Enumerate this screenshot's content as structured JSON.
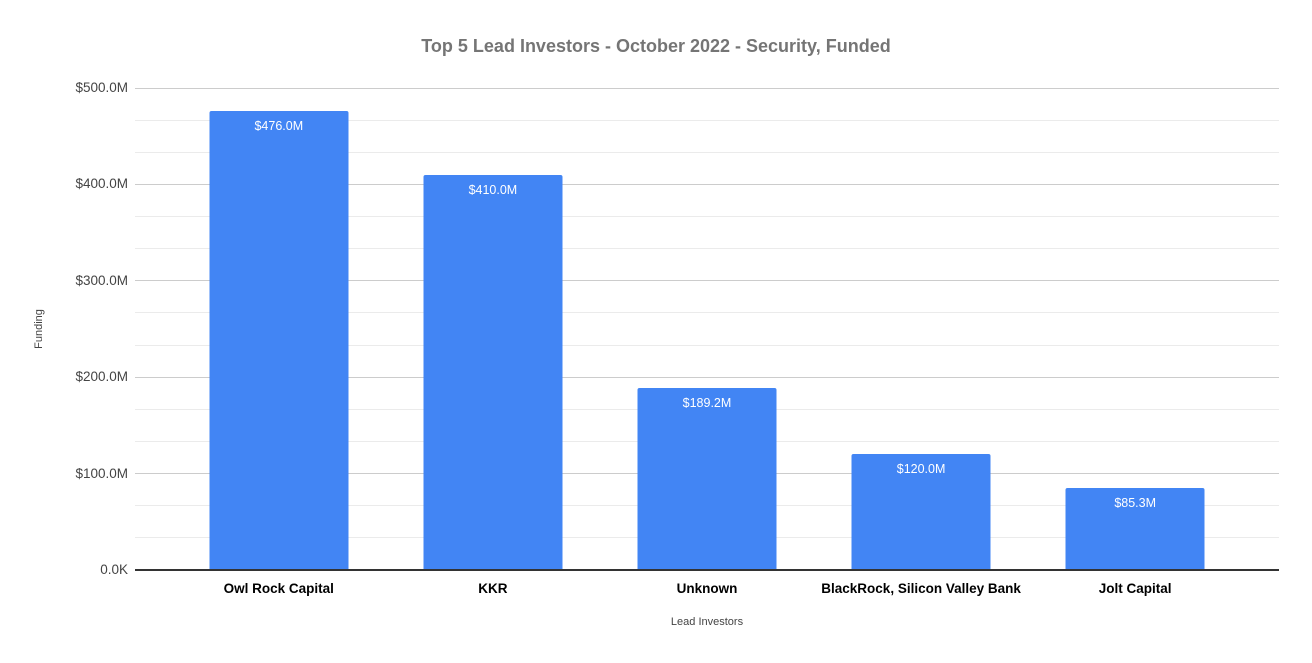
{
  "chart_data": {
    "type": "bar",
    "title": "Top 5 Lead Investors - October 2022 - Security, Funded",
    "xlabel": "Lead Investors",
    "ylabel": "Funding",
    "categories": [
      "Owl Rock Capital",
      "KKR",
      "Unknown",
      "BlackRock, Silicon Valley Bank",
      "Jolt Capital"
    ],
    "values": [
      476.0,
      410.0,
      189.2,
      120.0,
      85.3
    ],
    "value_labels": [
      "$476.0M",
      "$410.0M",
      "$189.2M",
      "$120.0M",
      "$85.3M"
    ],
    "ylim": [
      0,
      500
    ],
    "y_tick_values": [
      0,
      100,
      200,
      300,
      400,
      500
    ],
    "y_tick_labels": [
      "0.0K",
      "$100.0M",
      "$200.0M",
      "$300.0M",
      "$400.0M",
      "$500.0M"
    ],
    "y_minor_divisions_per_major": 3,
    "grid": true,
    "legend_position": "none",
    "colors": {
      "background": "#ffffff",
      "bar": "#4285f4",
      "bar_label": "#ffffff",
      "title": "#757575",
      "axis_title": "#444444",
      "tick_label": "#444444",
      "category_label": "#000000",
      "gridline_major": "#cccccc",
      "gridline_minor": "#ebebeb",
      "baseline": "#333333"
    }
  }
}
